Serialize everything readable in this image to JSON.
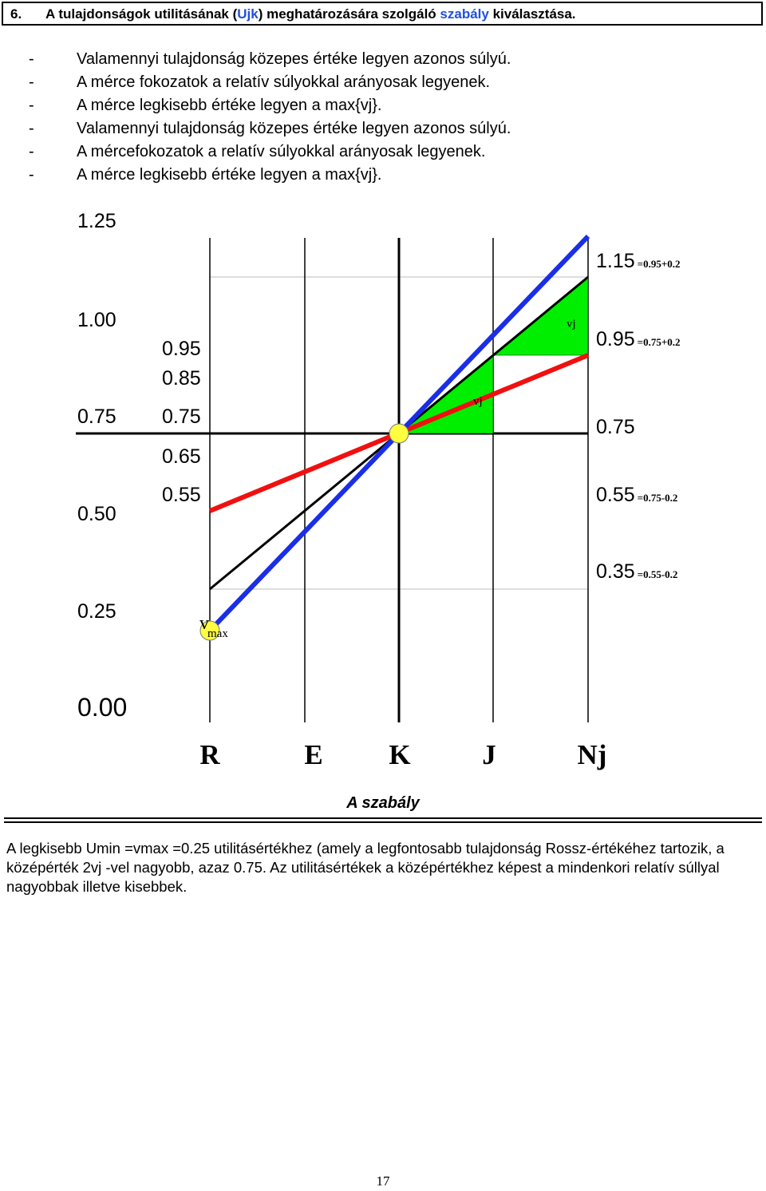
{
  "header": {
    "number": "6.",
    "title_part1": "A tulajdonságok utilitásának (",
    "title_ujk": "Ujk",
    "title_part2": ") meghatározására szolgáló ",
    "title_szabaly": "szabály",
    "title_part3": " kiválasztása."
  },
  "bullets": [
    {
      "dash": "-",
      "text": "Valamennyi tulajdonság közepes értéke legyen azonos súlyú."
    },
    {
      "dash": "-",
      "text": "A mérce fokozatok a relatív súlyokkal arányosak legyenek."
    },
    {
      "dash": "-",
      "text": "A mérce legkisebb értéke legyen a max{vj}."
    },
    {
      "dash": "-",
      "text": "Valamennyi tulajdonság közepes értéke legyen azonos súlyú."
    },
    {
      "dash": "-",
      "text": "A mércefokozatok a relatív súlyokkal arányosak legyenek."
    },
    {
      "dash": "-",
      "text": "A mérce legkisebb értéke legyen a max{vj}."
    }
  ],
  "diagram": {
    "left_scale": [
      "1.25",
      "1.00",
      "0.75",
      "0.50",
      "0.25",
      "0.00"
    ],
    "mid_scale": [
      "0.95",
      "0.85",
      "0.75",
      "0.65",
      "0.55"
    ],
    "right_scale": [
      {
        "value": "1.15",
        "note": "=0.95+0.2"
      },
      {
        "value": "0.95",
        "note": "=0.75+0.2"
      },
      {
        "value": "0.75",
        "note": ""
      },
      {
        "value": "0.55",
        "note": "=0.75-0.2"
      },
      {
        "value": "0.35",
        "note": "=0.55-0.2"
      }
    ],
    "vj_upper": "vj",
    "vj_lower": "vj",
    "vmax_v": "v",
    "vmax_sub": "max",
    "axis_letters": [
      "R",
      "E",
      "K",
      "J",
      "Nj"
    ],
    "colors": {
      "blue": "#1a2ee8",
      "red": "#f01010",
      "green": "#00ee00",
      "yellow": "#ffff40"
    }
  },
  "rule_title": "A szabály",
  "paragraph": "A legkisebb Umin =vmax =0.25 utilitásértékhez (amely a legfontosabb tulajdonság Rossz-értékéhez tartozik, a középérték 2vj -vel nagyobb, azaz 0.75. Az utilitásértékek a középértékhez képest a mindenkori relatív súllyal nagyobbak illetve kisebbek.",
  "page_number": "17"
}
